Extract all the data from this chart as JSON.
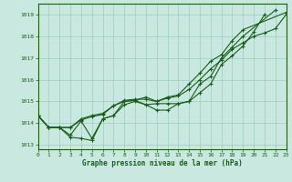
{
  "title": "Graphe pression niveau de la mer (hPa)",
  "bg_color": "#c8e8e0",
  "grid_color": "#a0ccc4",
  "line_color": "#1a5c1a",
  "xlim": [
    0,
    23
  ],
  "ylim": [
    1012.8,
    1019.5
  ],
  "yticks": [
    1013,
    1014,
    1015,
    1016,
    1017,
    1018,
    1019
  ],
  "xticks": [
    0,
    1,
    2,
    3,
    4,
    5,
    6,
    7,
    8,
    9,
    10,
    11,
    12,
    13,
    14,
    15,
    16,
    17,
    18,
    19,
    20,
    21,
    22,
    23
  ],
  "series": [
    {
      "x": [
        0,
        1,
        2,
        3,
        4,
        5,
        6,
        7,
        8,
        9,
        10,
        11,
        12,
        13,
        14,
        15,
        16,
        17,
        18,
        19,
        20,
        21
      ],
      "y": [
        1014.35,
        1013.8,
        1013.8,
        1013.45,
        1014.1,
        1013.3,
        1014.2,
        1014.35,
        1014.85,
        1015.0,
        1014.85,
        1014.9,
        1014.9,
        1014.9,
        1015.0,
        1015.4,
        1015.8,
        1016.7,
        1017.1,
        1017.55,
        1018.2,
        1019.0
      ]
    },
    {
      "x": [
        0,
        1,
        2,
        3,
        4,
        5,
        6,
        7,
        8,
        9,
        10,
        11,
        12,
        13,
        14,
        15,
        16,
        17,
        18,
        19,
        22
      ],
      "y": [
        1014.35,
        1013.8,
        1013.8,
        1013.35,
        1013.3,
        1013.2,
        1014.2,
        1014.35,
        1015.0,
        1015.05,
        1014.85,
        1014.6,
        1014.6,
        1014.9,
        1015.0,
        1015.8,
        1016.15,
        1017.0,
        1017.5,
        1018.0,
        1019.2
      ]
    },
    {
      "x": [
        0,
        1,
        2,
        3,
        4,
        5,
        6,
        7,
        8,
        9,
        10,
        11,
        12,
        13,
        14,
        15,
        16,
        17,
        18,
        19,
        23
      ],
      "y": [
        1014.35,
        1013.8,
        1013.8,
        1013.8,
        1014.15,
        1014.3,
        1014.4,
        1014.8,
        1015.0,
        1015.05,
        1015.2,
        1015.0,
        1015.2,
        1015.3,
        1015.8,
        1016.3,
        1016.85,
        1017.15,
        1017.8,
        1018.3,
        1019.1
      ]
    },
    {
      "x": [
        0,
        1,
        2,
        3,
        4,
        5,
        6,
        7,
        8,
        9,
        10,
        11,
        12,
        13,
        14,
        15,
        16,
        17,
        18,
        19,
        20,
        21,
        22,
        23
      ],
      "y": [
        1014.35,
        1013.8,
        1013.8,
        1013.8,
        1014.2,
        1014.35,
        1014.45,
        1014.8,
        1015.05,
        1015.1,
        1015.1,
        1015.0,
        1015.15,
        1015.25,
        1015.55,
        1016.0,
        1016.5,
        1016.9,
        1017.4,
        1017.7,
        1018.0,
        1018.15,
        1018.35,
        1019.0
      ]
    }
  ]
}
